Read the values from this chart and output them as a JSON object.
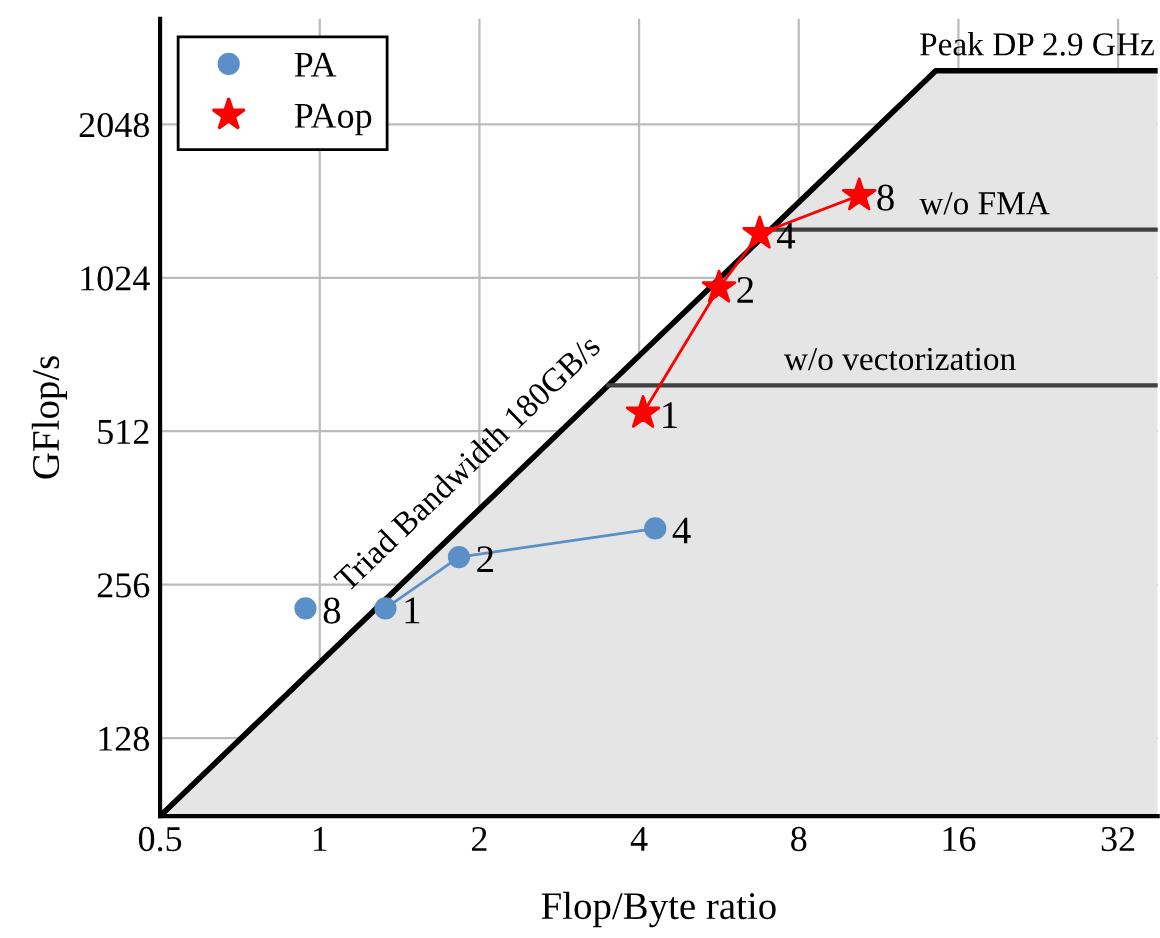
{
  "chart_data": {
    "type": "line",
    "xlabel": "Flop/Byte ratio",
    "ylabel": "GFlop/s",
    "log": "xy",
    "xlim": [
      0.5,
      38
    ],
    "ylim": [
      90,
      3300
    ],
    "xticks": [
      0.5,
      1,
      2,
      4,
      8,
      16,
      32
    ],
    "yticks": [
      128,
      256,
      512,
      1024,
      2048
    ],
    "grid": true,
    "legend": "top left",
    "series": [
      {
        "type": "area",
        "color": "#000000",
        "x": [
          0.5,
          14.5,
          38
        ],
        "values": [
          90,
          2610,
          2610
        ]
      },
      {
        "color": "#404040",
        "x": [
          7.07,
          38
        ],
        "values": [
          1273,
          1273
        ],
        "marker": "none"
      },
      {
        "color": "#404040",
        "x": [
          3.5,
          38
        ],
        "values": [
          630,
          630
        ],
        "marker": "none"
      },
      {
        "color": "#5b8fc7",
        "x": [
          1.33,
          1.83,
          4.29
        ],
        "values": [
          230,
          290,
          330
        ],
        "marker": "none"
      },
      {
        "type": "scatter",
        "name": "PA",
        "color": "#5b8fc7",
        "marker": "circle",
        "x": [
          0.94,
          1.33,
          1.83,
          4.29
        ],
        "values": [
          230,
          230,
          290,
          330
        ]
      },
      {
        "name": "PAop",
        "color": "#ff0000",
        "marker": "star",
        "x": [
          4.07,
          5.66,
          6.75,
          10.4
        ],
        "values": [
          556,
          979,
          1250,
          1485
        ]
      }
    ],
    "annotations": [
      "Triad Bandwidth 180GB/s",
      "Peak DP 2.9 GHz",
      {
        "text": "w/o FMA",
        "x": 13.5,
        "y": 1273
      },
      {
        "text": "w/o vectorization",
        "x": 7.5,
        "y": 630
      },
      {
        "text": "8",
        "x": 0.94,
        "y": 230
      },
      {
        "text": "1",
        "x": 1.33,
        "y": 230
      },
      {
        "text": "2",
        "x": 1.83,
        "y": 290
      },
      {
        "text": "4",
        "x": 4.29,
        "y": 330
      },
      {
        "text": "1",
        "x": 4.07,
        "y": 556
      },
      {
        "text": "2",
        "x": 5.66,
        "y": 979
      },
      {
        "text": "4",
        "x": 6.75,
        "y": 1250
      },
      {
        "text": "8",
        "x": 10.4,
        "y": 1485
      }
    ]
  }
}
